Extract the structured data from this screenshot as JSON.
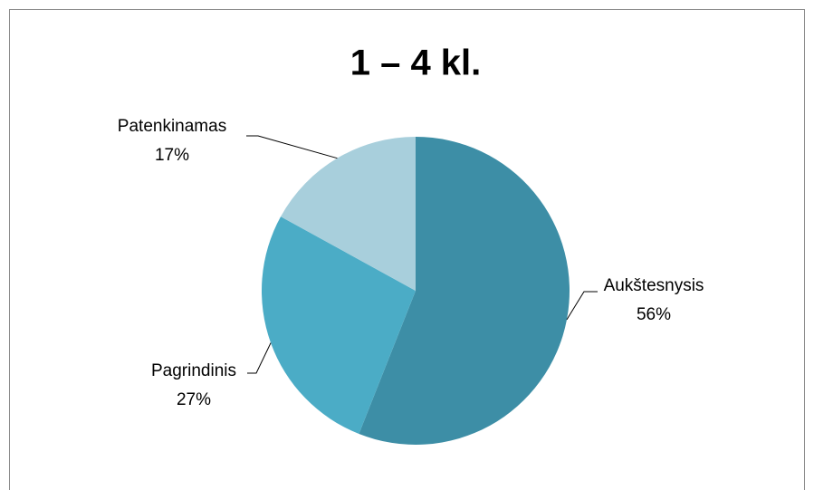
{
  "chart_data": {
    "type": "pie",
    "title": "1 – 4 kl.",
    "categories": [
      "Aukštesnysis",
      "Pagrindinis",
      "Patenkinamas"
    ],
    "values": [
      56,
      27,
      17
    ],
    "value_labels": [
      "56%",
      "27%",
      "17%"
    ],
    "colors": [
      "#3d8ea6",
      "#4bacc6",
      "#a8cfdc"
    ]
  }
}
